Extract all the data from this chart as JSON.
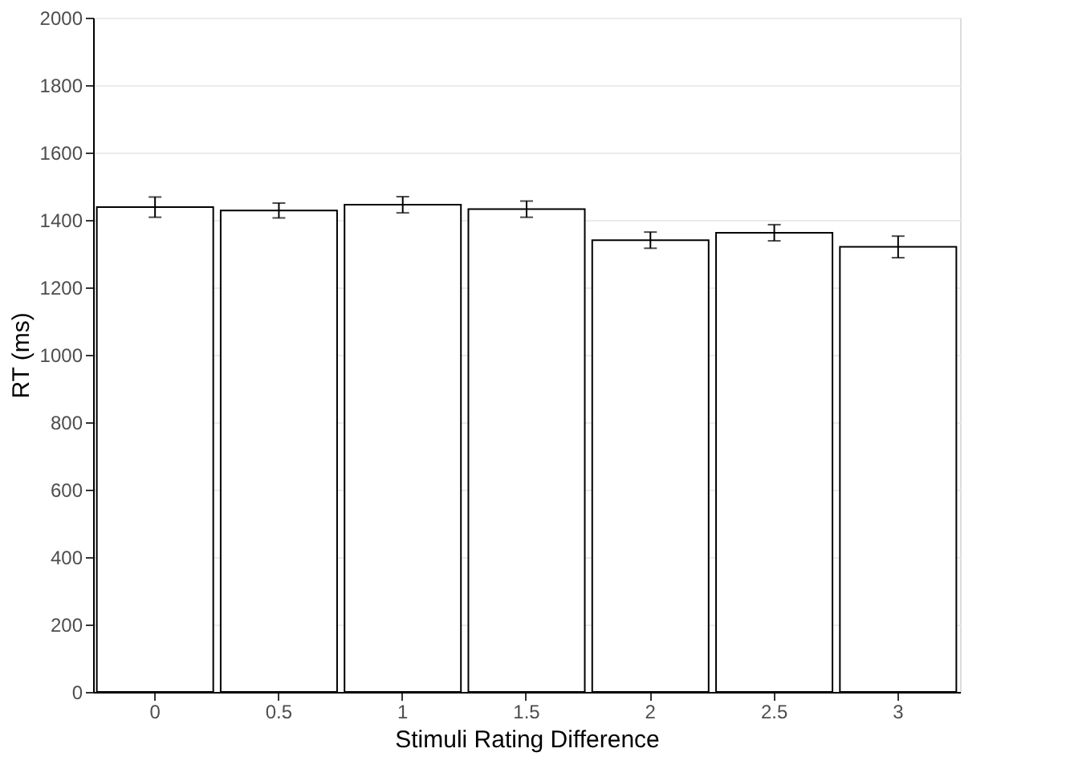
{
  "chart_data": {
    "type": "bar",
    "xlabel": "Stimuli Rating Difference",
    "ylabel": "RT (ms)",
    "categories": [
      "0",
      "0.5",
      "1",
      "1.5",
      "2",
      "2.5",
      "3"
    ],
    "values": [
      1438,
      1428,
      1445,
      1432,
      1340,
      1362,
      1320
    ],
    "errors": [
      30,
      22,
      24,
      24,
      24,
      24,
      32
    ],
    "color": "#ffffff",
    "ylim": [
      0,
      2000
    ],
    "yticks": [
      0,
      200,
      400,
      600,
      800,
      1000,
      1200,
      1400,
      1600,
      1800,
      2000
    ],
    "grid": "y"
  }
}
